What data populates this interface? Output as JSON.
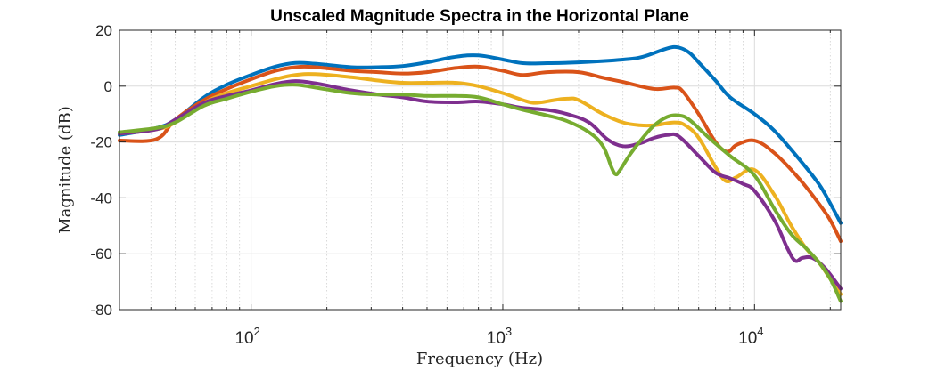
{
  "chart_data": {
    "type": "line",
    "title": "Unscaled Magnitude Spectra in the Horizontal Plane",
    "xlabel": "Frequency (Hz)",
    "ylabel": "Magnitude (dB)",
    "xscale": "log",
    "xlim": [
      30,
      22000
    ],
    "ylim": [
      -80,
      20
    ],
    "grid": "on",
    "x_ticks": [
      {
        "value": 100,
        "base": "10",
        "exp": "2"
      },
      {
        "value": 1000,
        "base": "10",
        "exp": "3"
      },
      {
        "value": 10000,
        "base": "10",
        "exp": "4"
      }
    ],
    "y_ticks": [
      {
        "value": 20,
        "label": "20"
      },
      {
        "value": 0,
        "label": "0"
      },
      {
        "value": -20,
        "label": "-20"
      },
      {
        "value": -40,
        "label": "-40"
      },
      {
        "value": -60,
        "label": "-60"
      },
      {
        "value": -80,
        "label": "-80"
      }
    ],
    "series": [
      {
        "color": "#0072BD",
        "points": [
          [
            30,
            -17.5
          ],
          [
            42,
            -15
          ],
          [
            50,
            -12
          ],
          [
            65,
            -4
          ],
          [
            80,
            0.5
          ],
          [
            100,
            4
          ],
          [
            125,
            7
          ],
          [
            150,
            8.3
          ],
          [
            180,
            8
          ],
          [
            250,
            6.8
          ],
          [
            320,
            6.8
          ],
          [
            400,
            7.2
          ],
          [
            500,
            8.5
          ],
          [
            650,
            10.5
          ],
          [
            800,
            11
          ],
          [
            1000,
            9.5
          ],
          [
            1200,
            8.2
          ],
          [
            1500,
            8.2
          ],
          [
            2000,
            8.5
          ],
          [
            3000,
            9.5
          ],
          [
            3600,
            10.5
          ],
          [
            4500,
            13.5
          ],
          [
            5000,
            13.8
          ],
          [
            5500,
            12
          ],
          [
            6000,
            8.5
          ],
          [
            7000,
            2
          ],
          [
            8000,
            -4
          ],
          [
            10000,
            -10
          ],
          [
            12000,
            -16
          ],
          [
            15000,
            -26
          ],
          [
            18000,
            -35
          ],
          [
            20000,
            -42
          ],
          [
            22000,
            -49
          ]
        ]
      },
      {
        "color": "#D95319",
        "points": [
          [
            30,
            -19.5
          ],
          [
            42,
            -19
          ],
          [
            50,
            -12
          ],
          [
            65,
            -5
          ],
          [
            80,
            -1
          ],
          [
            100,
            2.5
          ],
          [
            125,
            5.5
          ],
          [
            150,
            6.8
          ],
          [
            180,
            6.8
          ],
          [
            250,
            5.5
          ],
          [
            320,
            5
          ],
          [
            400,
            4.5
          ],
          [
            500,
            5
          ],
          [
            650,
            6.5
          ],
          [
            800,
            7
          ],
          [
            1000,
            5.5
          ],
          [
            1200,
            4
          ],
          [
            1500,
            5
          ],
          [
            2000,
            5
          ],
          [
            2500,
            3
          ],
          [
            3000,
            1.5
          ],
          [
            4000,
            -1
          ],
          [
            4800,
            -0.5
          ],
          [
            5200,
            -2
          ],
          [
            6000,
            -10
          ],
          [
            7000,
            -20
          ],
          [
            7800,
            -23.5
          ],
          [
            8500,
            -21
          ],
          [
            10000,
            -19.5
          ],
          [
            12000,
            -24
          ],
          [
            15000,
            -33
          ],
          [
            18000,
            -42
          ],
          [
            20000,
            -48
          ],
          [
            22000,
            -55.5
          ]
        ]
      },
      {
        "color": "#EDB120",
        "points": [
          [
            30,
            -17
          ],
          [
            42,
            -15.5
          ],
          [
            50,
            -13
          ],
          [
            65,
            -6
          ],
          [
            80,
            -2.5
          ],
          [
            100,
            0
          ],
          [
            125,
            2.5
          ],
          [
            150,
            4
          ],
          [
            180,
            4.3
          ],
          [
            250,
            3.2
          ],
          [
            320,
            2
          ],
          [
            400,
            1.2
          ],
          [
            500,
            1.2
          ],
          [
            650,
            1.2
          ],
          [
            800,
            0
          ],
          [
            1000,
            -2.5
          ],
          [
            1200,
            -5
          ],
          [
            1350,
            -6
          ],
          [
            1600,
            -5
          ],
          [
            1800,
            -4.5
          ],
          [
            2000,
            -5
          ],
          [
            2500,
            -10
          ],
          [
            3000,
            -13
          ],
          [
            3500,
            -14
          ],
          [
            4000,
            -14
          ],
          [
            4800,
            -13
          ],
          [
            5300,
            -14
          ],
          [
            6000,
            -18.5
          ],
          [
            7000,
            -29
          ],
          [
            7700,
            -34
          ],
          [
            8500,
            -32.5
          ],
          [
            10000,
            -30
          ],
          [
            12000,
            -39
          ],
          [
            14000,
            -50
          ],
          [
            16000,
            -58
          ],
          [
            18000,
            -63
          ],
          [
            20000,
            -69
          ],
          [
            22000,
            -74.5
          ]
        ]
      },
      {
        "color": "#7E2F8E",
        "points": [
          [
            30,
            -17
          ],
          [
            42,
            -15.5
          ],
          [
            50,
            -12
          ],
          [
            65,
            -6
          ],
          [
            80,
            -3.5
          ],
          [
            100,
            -1.5
          ],
          [
            125,
            0.8
          ],
          [
            150,
            1.8
          ],
          [
            180,
            1
          ],
          [
            250,
            -1.5
          ],
          [
            320,
            -3
          ],
          [
            400,
            -4
          ],
          [
            500,
            -5.5
          ],
          [
            650,
            -5.8
          ],
          [
            800,
            -5.5
          ],
          [
            1000,
            -6.5
          ],
          [
            1200,
            -7.8
          ],
          [
            1500,
            -8.5
          ],
          [
            1800,
            -10
          ],
          [
            2200,
            -13
          ],
          [
            2600,
            -19
          ],
          [
            3000,
            -21.5
          ],
          [
            3500,
            -20.5
          ],
          [
            4000,
            -18.5
          ],
          [
            4500,
            -17.5
          ],
          [
            5000,
            -18
          ],
          [
            6000,
            -25
          ],
          [
            7000,
            -31
          ],
          [
            8000,
            -33
          ],
          [
            9000,
            -35
          ],
          [
            10000,
            -37.5
          ],
          [
            12000,
            -48
          ],
          [
            13500,
            -58
          ],
          [
            14500,
            -62.5
          ],
          [
            15500,
            -61.5
          ],
          [
            17000,
            -61.5
          ],
          [
            19000,
            -65
          ],
          [
            22000,
            -72.5
          ]
        ]
      },
      {
        "color": "#77AC30",
        "points": [
          [
            30,
            -16.5
          ],
          [
            42,
            -15
          ],
          [
            50,
            -13
          ],
          [
            65,
            -7
          ],
          [
            80,
            -4.5
          ],
          [
            100,
            -2
          ],
          [
            125,
            0
          ],
          [
            150,
            0.5
          ],
          [
            180,
            -0.5
          ],
          [
            250,
            -2.5
          ],
          [
            320,
            -3
          ],
          [
            400,
            -3
          ],
          [
            500,
            -3.5
          ],
          [
            650,
            -3.5
          ],
          [
            800,
            -4
          ],
          [
            1000,
            -6.5
          ],
          [
            1200,
            -8.5
          ],
          [
            1500,
            -10.5
          ],
          [
            1800,
            -12.5
          ],
          [
            2200,
            -16.5
          ],
          [
            2500,
            -21.5
          ],
          [
            2700,
            -29
          ],
          [
            2800,
            -31.5
          ],
          [
            2900,
            -30.5
          ],
          [
            3200,
            -24.5
          ],
          [
            3600,
            -18.5
          ],
          [
            4000,
            -14
          ],
          [
            4500,
            -11
          ],
          [
            5000,
            -10.5
          ],
          [
            5500,
            -12
          ],
          [
            6500,
            -18
          ],
          [
            8000,
            -25
          ],
          [
            10000,
            -32
          ],
          [
            12000,
            -44
          ],
          [
            14000,
            -53
          ],
          [
            16000,
            -58
          ],
          [
            18000,
            -63
          ],
          [
            20000,
            -69
          ],
          [
            22000,
            -77
          ]
        ]
      }
    ]
  }
}
